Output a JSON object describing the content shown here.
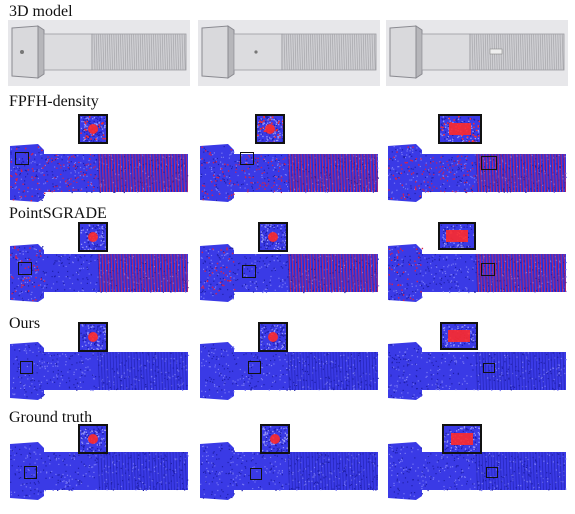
{
  "figure": {
    "rows": [
      {
        "label": "3D model",
        "kind": "model"
      },
      {
        "label": "FPFH-density",
        "kind": "cloud",
        "noise": "heavy",
        "defects": [
          "hole",
          "hole",
          "slot"
        ]
      },
      {
        "label": "PointSGRADE",
        "kind": "cloud",
        "noise": "threads",
        "defects": [
          "hole",
          "hole",
          "slot"
        ]
      },
      {
        "label": "Ours",
        "kind": "cloud",
        "noise": "clean",
        "defects": [
          "hole",
          "hole",
          "slot"
        ]
      },
      {
        "label": "Ground truth",
        "kind": "cloud",
        "noise": "clean",
        "defects": [
          "hole",
          "hole",
          "slot"
        ]
      }
    ],
    "colors": {
      "cloud_base": "#3a3ae6",
      "cloud_dark": "#1f1fa8",
      "highlight": "#ff2a2a",
      "thread_red": "#d8204a",
      "model_metal": "#c9c9cc",
      "model_background": "#e7e7ea",
      "frame": "#111111"
    }
  }
}
